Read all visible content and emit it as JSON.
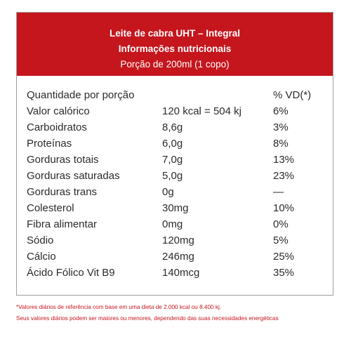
{
  "header": {
    "title": "Leite de cabra UHT – Integral",
    "subtitle": "Informações nutricionais",
    "portion": "Porção de 200ml (1 copo)"
  },
  "table": {
    "headers": [
      "Quantidade por porção",
      "",
      "% VD(*)"
    ],
    "rows": [
      [
        "Valor calórico",
        "120 kcal = 504 kj",
        "6%"
      ],
      [
        "Carboidratos",
        "8,6g",
        "3%"
      ],
      [
        "Proteínas",
        "6,0g",
        "8%"
      ],
      [
        "Gorduras totais",
        "7,0g",
        "13%"
      ],
      [
        "Gorduras saturadas",
        "5,0g",
        "23%"
      ],
      [
        "Gorduras trans",
        "0g",
        "—"
      ],
      [
        "Colesterol",
        "30mg",
        "10%"
      ],
      [
        "Fibra alimentar",
        "0mg",
        "0%"
      ],
      [
        "Sódio",
        "120mg",
        "5%"
      ],
      [
        "Cálcio",
        "246mg",
        "25%"
      ],
      [
        "Ácido Fólico Vit B9",
        "140mcg",
        "35%"
      ]
    ]
  },
  "footnotes": [
    "*Valores diários de referência com base em uma dieta de 2.000 kcal ou 8.400 kj.",
    "Seus valores diários podem ser maiores ou menores, dependendo das suas necessidades energéticas"
  ],
  "colors": {
    "accent": "#c5161d",
    "text": "#2b2b2b",
    "border": "#9e9e9e"
  }
}
